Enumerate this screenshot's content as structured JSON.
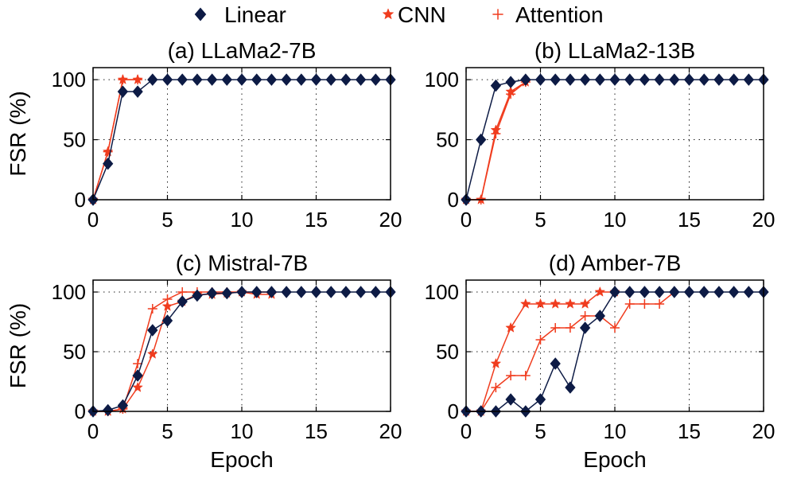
{
  "legend": {
    "placement": "top-center",
    "items": [
      {
        "label": "Linear",
        "color": "#0d1b45",
        "marker": "diamond"
      },
      {
        "label": "CNN",
        "color": "#f03c1e",
        "marker": "star"
      },
      {
        "label": "Attention",
        "color": "#f03c1e",
        "marker": "plus"
      }
    ]
  },
  "chart_data": [
    {
      "type": "line",
      "title": "(a) LLaMa2-7B",
      "xlabel": "",
      "ylabel": "FSR (%)",
      "xlim": [
        0,
        20
      ],
      "ylim": [
        0,
        110
      ],
      "xticks": [
        0,
        5,
        10,
        15,
        20
      ],
      "yticks": [
        0,
        50,
        100
      ],
      "grid": true,
      "series": [
        {
          "name": "CNN",
          "x": [
            0,
            1,
            2,
            3
          ],
          "y": [
            0,
            40,
            100,
            100
          ]
        },
        {
          "name": "Attention",
          "x": [
            0,
            1,
            2,
            3
          ],
          "y": [
            0,
            40,
            100,
            100
          ]
        },
        {
          "name": "Linear",
          "x": [
            0,
            1,
            2,
            3,
            4,
            5,
            6,
            7,
            8,
            9,
            10,
            11,
            12,
            13,
            14,
            15,
            16,
            17,
            18,
            19,
            20
          ],
          "y": [
            0,
            30,
            90,
            90,
            100,
            100,
            100,
            100,
            100,
            100,
            100,
            100,
            100,
            100,
            100,
            100,
            100,
            100,
            100,
            100,
            100
          ]
        }
      ]
    },
    {
      "type": "line",
      "title": "(b) LLaMa2-13B",
      "xlabel": "",
      "ylabel": "",
      "xlim": [
        0,
        20
      ],
      "ylim": [
        0,
        110
      ],
      "xticks": [
        0,
        5,
        10,
        15,
        20
      ],
      "yticks": [
        0,
        50,
        100
      ],
      "grid": true,
      "series": [
        {
          "name": "CNN",
          "x": [
            0,
            1,
            2,
            3,
            4
          ],
          "y": [
            0,
            0,
            58,
            90,
            98
          ]
        },
        {
          "name": "Attention",
          "x": [
            0,
            1,
            2,
            3,
            4
          ],
          "y": [
            0,
            0,
            55,
            88,
            98
          ]
        },
        {
          "name": "Linear",
          "x": [
            0,
            1,
            2,
            3,
            4,
            5,
            6,
            7,
            8,
            9,
            10,
            11,
            12,
            13,
            14,
            15,
            16,
            17,
            18,
            19,
            20
          ],
          "y": [
            0,
            50,
            95,
            98,
            100,
            100,
            100,
            100,
            100,
            100,
            100,
            100,
            100,
            100,
            100,
            100,
            100,
            100,
            100,
            100,
            100
          ]
        }
      ]
    },
    {
      "type": "line",
      "title": "(c) Mistral-7B",
      "xlabel": "Epoch",
      "ylabel": "FSR (%)",
      "xlim": [
        0,
        20
      ],
      "ylim": [
        0,
        110
      ],
      "xticks": [
        0,
        5,
        10,
        15,
        20
      ],
      "yticks": [
        0,
        50,
        100
      ],
      "grid": true,
      "series": [
        {
          "name": "CNN",
          "x": [
            0,
            1,
            2,
            3,
            4,
            5,
            6,
            7,
            8,
            9,
            10,
            11,
            12
          ],
          "y": [
            0,
            0,
            2,
            20,
            48,
            88,
            92,
            98,
            98,
            99,
            100,
            98,
            98
          ]
        },
        {
          "name": "Attention",
          "x": [
            0,
            1,
            2,
            3,
            4,
            5,
            6,
            7,
            8,
            9,
            10,
            11,
            12
          ],
          "y": [
            0,
            0,
            2,
            40,
            86,
            94,
            100,
            100,
            100,
            100,
            100,
            100,
            100
          ]
        },
        {
          "name": "Linear",
          "x": [
            0,
            1,
            2,
            3,
            4,
            5,
            6,
            7,
            8,
            9,
            10,
            11,
            12,
            13,
            14,
            15,
            16,
            17,
            18,
            19,
            20
          ],
          "y": [
            0,
            1,
            5,
            30,
            68,
            76,
            92,
            97,
            99,
            99,
            100,
            100,
            100,
            100,
            100,
            100,
            100,
            100,
            100,
            100,
            100
          ]
        }
      ]
    },
    {
      "type": "line",
      "title": "(d) Amber-7B",
      "xlabel": "Epoch",
      "ylabel": "",
      "xlim": [
        0,
        20
      ],
      "ylim": [
        0,
        110
      ],
      "xticks": [
        0,
        5,
        10,
        15,
        20
      ],
      "yticks": [
        0,
        50,
        100
      ],
      "grid": true,
      "series": [
        {
          "name": "CNN",
          "x": [
            0,
            1,
            2,
            3,
            4,
            5,
            6,
            7,
            8,
            9,
            10
          ],
          "y": [
            0,
            0,
            40,
            70,
            90,
            90,
            90,
            90,
            90,
            100,
            100
          ]
        },
        {
          "name": "Attention",
          "x": [
            0,
            1,
            2,
            3,
            4,
            5,
            6,
            7,
            8,
            9,
            10,
            11,
            12,
            13,
            14
          ],
          "y": [
            0,
            0,
            20,
            30,
            30,
            60,
            70,
            70,
            80,
            80,
            70,
            90,
            90,
            90,
            100
          ]
        },
        {
          "name": "Linear",
          "x": [
            0,
            1,
            2,
            3,
            4,
            5,
            6,
            7,
            8,
            9,
            10,
            11,
            12,
            13,
            14,
            15,
            16,
            17,
            18,
            19,
            20
          ],
          "y": [
            0,
            0,
            0,
            10,
            0,
            10,
            40,
            20,
            70,
            80,
            100,
            100,
            100,
            100,
            100,
            100,
            100,
            100,
            100,
            100,
            100
          ]
        }
      ]
    }
  ]
}
